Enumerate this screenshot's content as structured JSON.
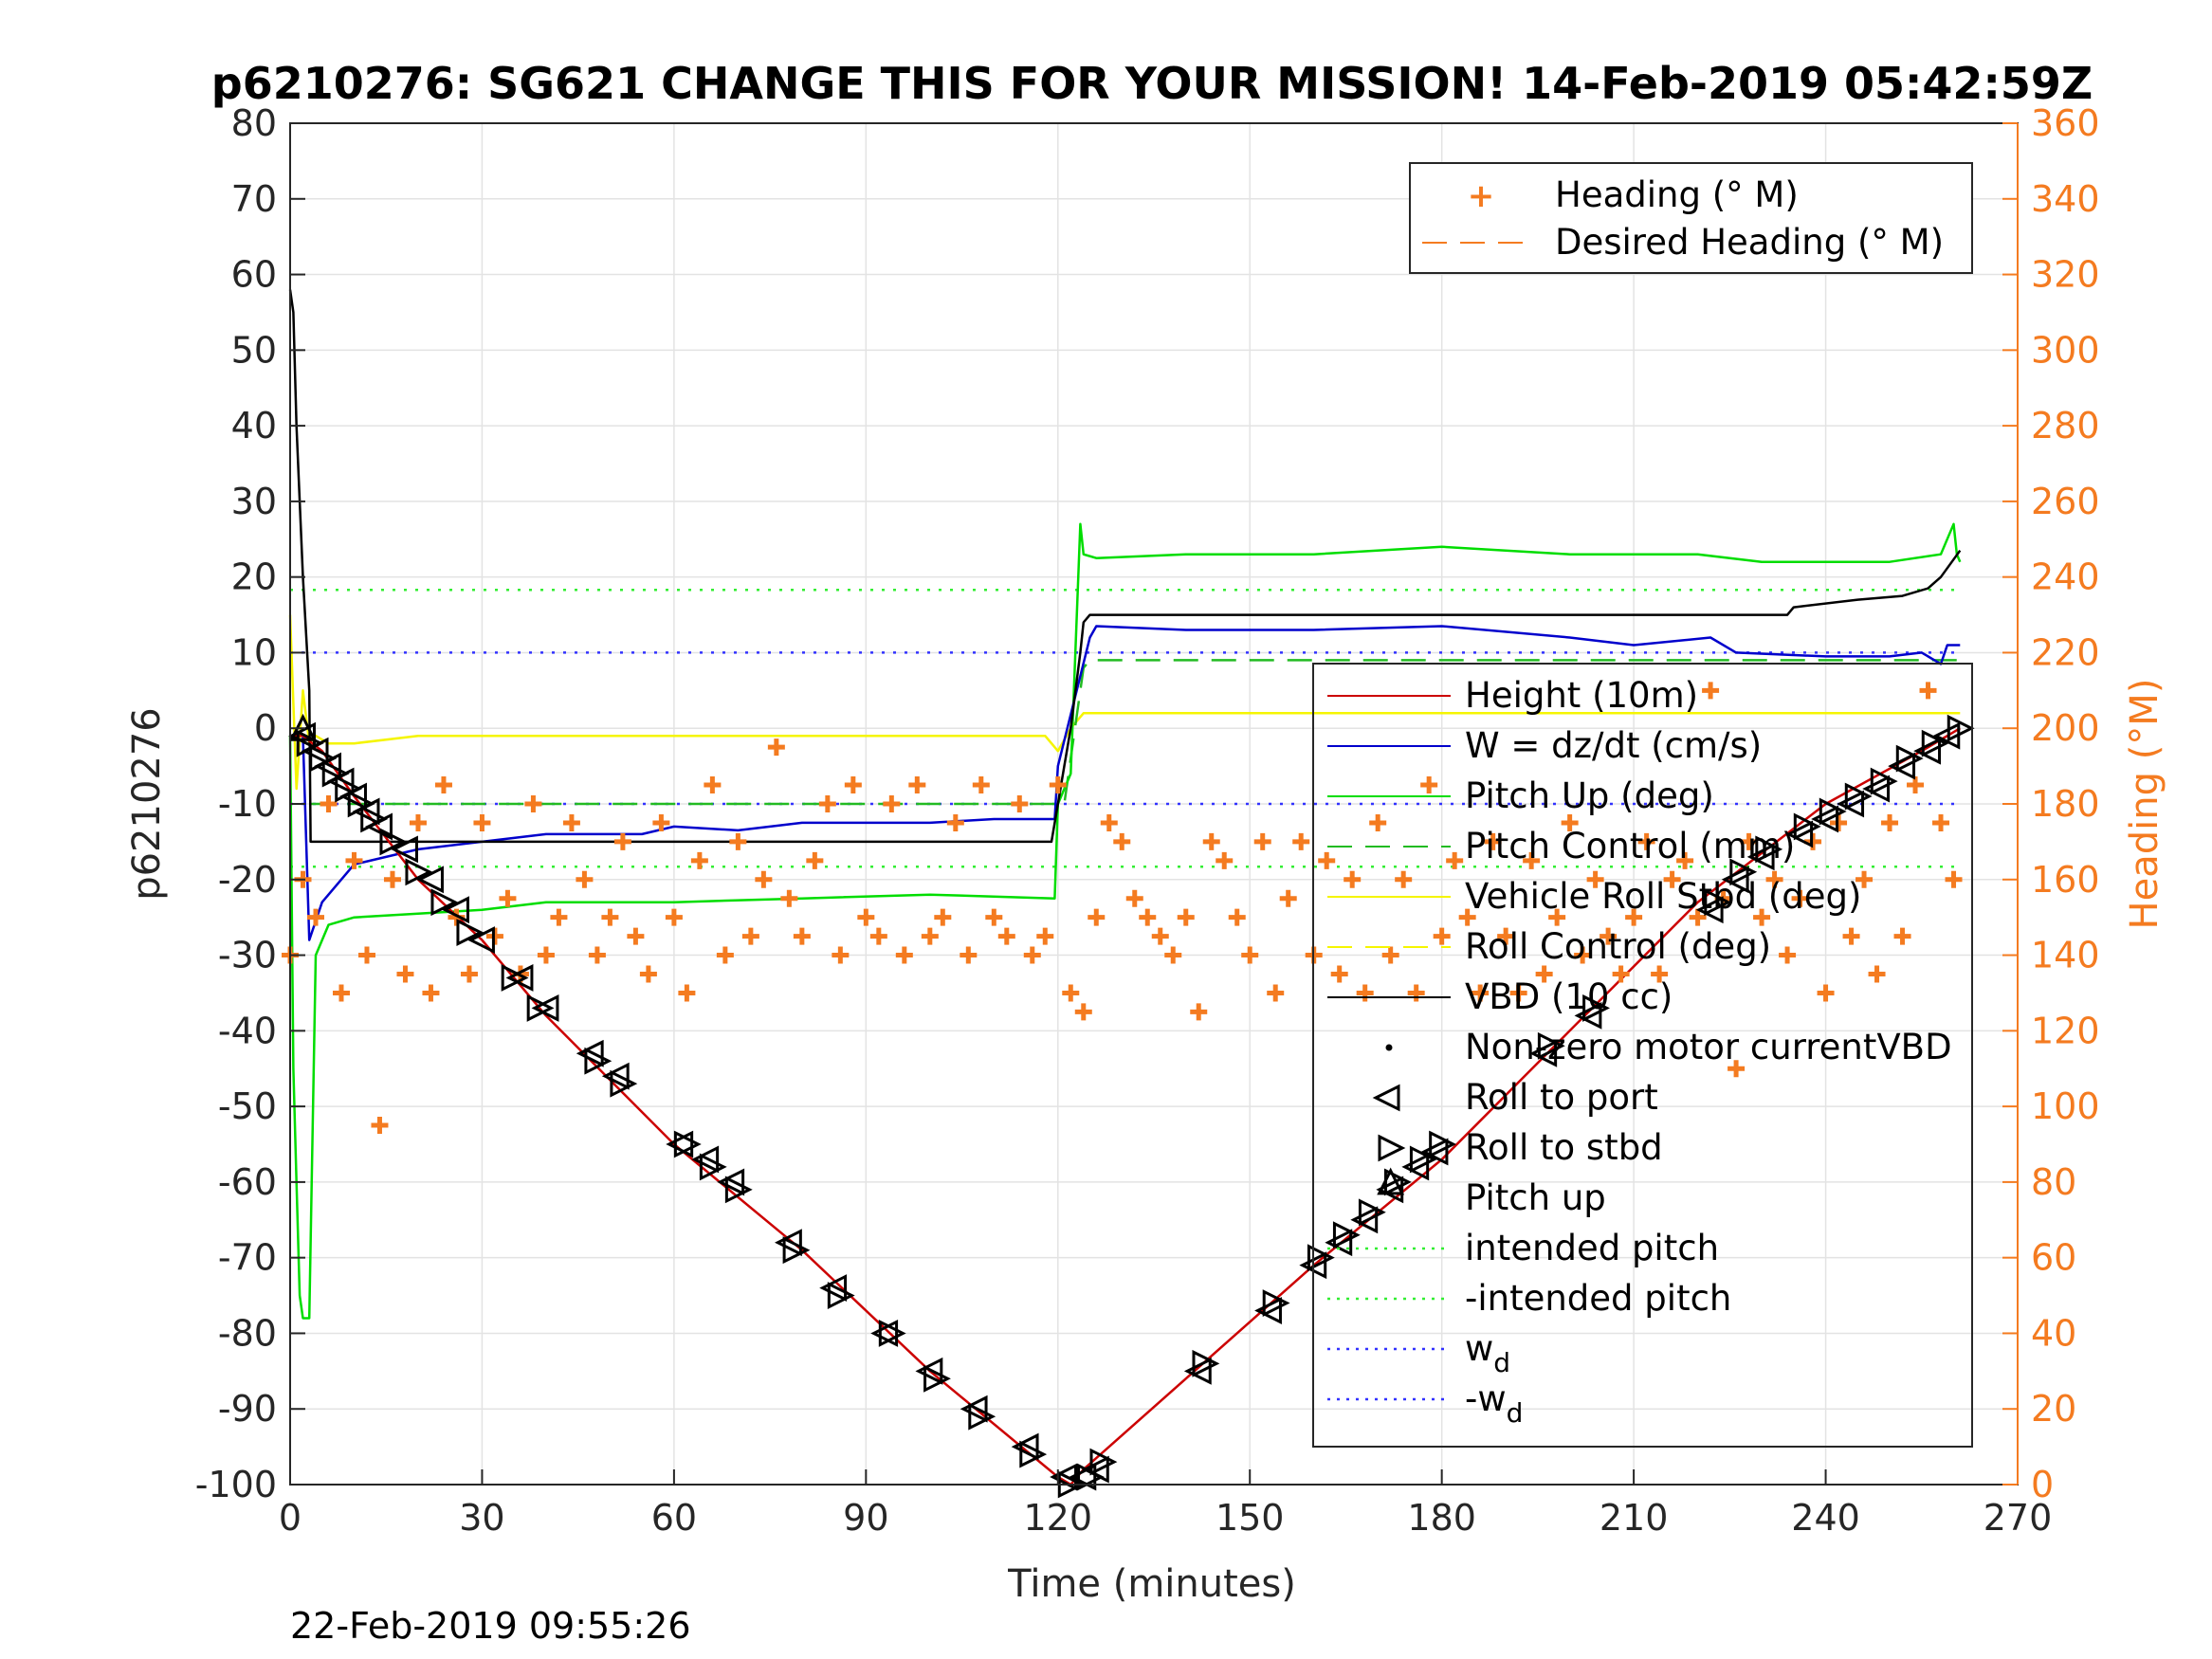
{
  "chart_data": {
    "type": "line",
    "title": "p6210276: SG621 CHANGE THIS FOR YOUR MISSION! 14-Feb-2019 05:42:59Z",
    "xlabel": "Time (minutes)",
    "ylabel": "p6210276",
    "y2label": "Heading (°M)",
    "footer": "22-Feb-2019 09:55:26",
    "xlim": [
      0,
      270
    ],
    "ylim": [
      -100,
      80
    ],
    "y2lim": [
      0,
      360
    ],
    "xticks": [
      "0",
      "30",
      "60",
      "90",
      "120",
      "150",
      "180",
      "210",
      "240",
      "270"
    ],
    "yticks": [
      "80",
      "70",
      "60",
      "50",
      "40",
      "30",
      "20",
      "10",
      "0",
      "-10",
      "-20",
      "-30",
      "-40",
      "-50",
      "-60",
      "-70",
      "-80",
      "-90",
      "-100"
    ],
    "y2ticks": [
      "360",
      "340",
      "320",
      "300",
      "280",
      "260",
      "240",
      "220",
      "200",
      "180",
      "160",
      "140",
      "120",
      "100",
      "80",
      "60",
      "40",
      "20",
      "0"
    ],
    "grid": true,
    "colors": {
      "height": "#cc0000",
      "w": "#0000cc",
      "pitch": "#00dd00",
      "pitch_control": "#22bb22",
      "roll": "#f5f500",
      "vbd": "#000000",
      "heading": "#f47b20",
      "intended_pitch": "#33ee33",
      "wd": "#3333ff"
    },
    "series": [
      {
        "name": "Height (10m)",
        "key": "height",
        "x": [
          0,
          2,
          5,
          10,
          20,
          30,
          40,
          60,
          80,
          100,
          120,
          122,
          124,
          140,
          160,
          180,
          200,
          220,
          240,
          255,
          261
        ],
        "y": [
          -1,
          -1,
          -3,
          -9,
          -20,
          -28,
          -38,
          -55,
          -69,
          -85,
          -99,
          -100,
          -98,
          -86,
          -71,
          -57,
          -40,
          -23,
          -10,
          -3,
          0
        ]
      },
      {
        "name": "W = dz/dt (cm/s)",
        "key": "w",
        "x": [
          0,
          2,
          3,
          5,
          10,
          20,
          30,
          40,
          55,
          60,
          70,
          80,
          100,
          110,
          119.5,
          120,
          125,
          126,
          140,
          160,
          180,
          200,
          210,
          222,
          226,
          240,
          250,
          255,
          258,
          259,
          261
        ],
        "y": [
          -1,
          -1,
          -28,
          -23,
          -18,
          -16,
          -15,
          -14,
          -14,
          -13,
          -13.5,
          -12.5,
          -12.5,
          -12,
          -12,
          -5,
          12,
          13.5,
          13,
          13,
          13.5,
          12,
          11,
          12,
          10,
          9.5,
          9.5,
          10,
          8.5,
          11,
          11
        ]
      },
      {
        "name": "Pitch Up (deg)",
        "key": "pitch",
        "x": [
          0,
          0.5,
          1,
          1.5,
          2,
          3,
          4,
          6,
          10,
          20,
          30,
          40,
          60,
          80,
          100,
          119.5,
          120,
          122,
          123.5,
          124,
          126,
          140,
          160,
          180,
          200,
          220,
          230,
          250,
          258,
          260,
          260.5,
          261
        ],
        "y": [
          -1,
          -45,
          -60,
          -75,
          -78,
          -78,
          -30,
          -26,
          -25,
          -24.5,
          -24,
          -23,
          -23,
          -22.5,
          -22,
          -22.5,
          -10,
          -6,
          27,
          23,
          22.5,
          23,
          23,
          24,
          23,
          23,
          22,
          22,
          23,
          27,
          23,
          22
        ]
      },
      {
        "name": "Pitch Control (mm)",
        "key": "pitch_control",
        "x": [
          3,
          120,
          121,
          124,
          125,
          261
        ],
        "y": [
          -10,
          -10,
          -10,
          8,
          9,
          9
        ]
      },
      {
        "name": "Vehicle Roll Stbd (deg)",
        "key": "roll",
        "x": [
          0,
          1,
          2,
          3,
          4,
          6,
          10,
          20,
          30,
          40,
          60,
          80,
          100,
          118,
          120,
          122,
          124,
          126,
          140,
          160,
          180,
          200,
          220,
          240,
          250,
          255,
          260,
          261
        ],
        "y": [
          15,
          -8,
          5,
          -2,
          -1,
          -2,
          -2,
          -1,
          -1,
          -1,
          -1,
          -1,
          -1,
          -1,
          -3,
          0,
          2,
          2,
          2,
          2,
          2,
          2,
          2,
          2,
          2,
          2,
          2,
          2
        ]
      },
      {
        "name": "Roll Control (deg)",
        "key": "roll_control",
        "x": [],
        "y": []
      },
      {
        "name": "VBD (10 cc)",
        "key": "vbd",
        "x": [
          0,
          0.5,
          1,
          2,
          3,
          3.2,
          10,
          30,
          60,
          90,
          119,
          120,
          121,
          122,
          123.5,
          124,
          125,
          160,
          200,
          220,
          234,
          235,
          245,
          252,
          256,
          258,
          261
        ],
        "y": [
          58,
          55,
          40,
          20,
          5,
          -15,
          -15,
          -15,
          -15,
          -15,
          -15,
          -10,
          -5,
          0,
          10,
          14,
          15,
          15,
          15,
          15,
          15,
          16,
          17,
          17.5,
          18.5,
          20,
          23.5
        ]
      },
      {
        "name": "Non-zero motor currentVBD",
        "key": "nonzero",
        "x": [],
        "y": []
      },
      {
        "name": "Roll to port",
        "key": "roll_port",
        "x": [
          2,
          4,
          6,
          8,
          10,
          12,
          14,
          18,
          22,
          26,
          30,
          36,
          40,
          47,
          51,
          61,
          65,
          69,
          78,
          85,
          93,
          100,
          107,
          115,
          121,
          124,
          126,
          142,
          153,
          160,
          164,
          168,
          172,
          176,
          179,
          196,
          203,
          222,
          226,
          230,
          236,
          240,
          244,
          248,
          252,
          256,
          259
        ],
        "y": [
          -1,
          -3,
          -5,
          -7,
          -9,
          -11,
          -13,
          -16,
          -20,
          -24,
          -28,
          -33,
          -37,
          -43,
          -46,
          -55,
          -57,
          -60,
          -68,
          -74,
          -80,
          -85,
          -90,
          -95,
          -99,
          -99,
          -98,
          -85,
          -77,
          -71,
          -68,
          -65,
          -61,
          -58,
          -56,
          -43,
          -38,
          -24,
          -20,
          -17,
          -14,
          -12,
          -10,
          -8,
          -5,
          -3,
          -1
        ]
      },
      {
        "name": "Roll to stbd",
        "key": "roll_stbd",
        "x": [
          3,
          5,
          7,
          9,
          11,
          13,
          16,
          20,
          24,
          28,
          35,
          39,
          48,
          52,
          62,
          66,
          70,
          79,
          86,
          94,
          101,
          108,
          116,
          122,
          125,
          127,
          143,
          154,
          161,
          165,
          169,
          173,
          177,
          180,
          197,
          204,
          223,
          227,
          231,
          237,
          241,
          245,
          249,
          253,
          257,
          261
        ],
        "y": [
          -2,
          -4,
          -6,
          -8,
          -10,
          -12,
          -15,
          -19,
          -23,
          -27,
          -33,
          -37,
          -44,
          -47,
          -55,
          -58,
          -61,
          -69,
          -75,
          -80,
          -86,
          -91,
          -96,
          -100,
          -99,
          -97,
          -84,
          -76,
          -70,
          -67,
          -64,
          -60,
          -57,
          -55,
          -42,
          -37,
          -23,
          -19,
          -16,
          -13,
          -11,
          -9,
          -7,
          -4,
          -2,
          0
        ]
      },
      {
        "name": "Pitch up",
        "key": "pitch_up",
        "x": [
          2,
          172
        ],
        "y": [
          0,
          -60
        ]
      },
      {
        "name": "intended pitch",
        "key": "intended_pitch",
        "x": [
          0,
          261
        ],
        "y": [
          18.3,
          18.3
        ]
      },
      {
        "name": "-intended pitch",
        "key": "neg_intended_pitch",
        "x": [
          0,
          261
        ],
        "y": [
          -18.3,
          -18.3
        ]
      },
      {
        "name": "w_d",
        "key": "wd",
        "x": [
          0,
          261
        ],
        "y": [
          10,
          10
        ]
      },
      {
        "name": "-w_d",
        "key": "neg_wd",
        "x": [
          0,
          261
        ],
        "y": [
          -10,
          -10
        ]
      },
      {
        "name": "Heading (° M)",
        "key": "heading",
        "axis": "right",
        "x": [
          0,
          2,
          4,
          6,
          8,
          10,
          12,
          14,
          16,
          18,
          20,
          22,
          24,
          26,
          28,
          30,
          32,
          34,
          36,
          38,
          40,
          42,
          44,
          46,
          48,
          50,
          52,
          54,
          56,
          58,
          60,
          62,
          64,
          66,
          68,
          70,
          72,
          74,
          76,
          78,
          80,
          82,
          84,
          86,
          88,
          90,
          92,
          94,
          96,
          98,
          100,
          102,
          104,
          106,
          108,
          110,
          112,
          114,
          116,
          118,
          120,
          122,
          124,
          126,
          128,
          130,
          132,
          134,
          136,
          138,
          140,
          142,
          144,
          146,
          148,
          150,
          152,
          154,
          156,
          158,
          160,
          162,
          164,
          166,
          168,
          170,
          172,
          174,
          176,
          178,
          180,
          182,
          184,
          186,
          188,
          190,
          192,
          194,
          196,
          198,
          200,
          202,
          204,
          206,
          208,
          210,
          212,
          214,
          216,
          218,
          220,
          222,
          224,
          226,
          228,
          230,
          232,
          234,
          236,
          238,
          240,
          242,
          244,
          246,
          248,
          250,
          252,
          254,
          256,
          258,
          260
        ],
        "y": [
          140,
          160,
          150,
          180,
          130,
          165,
          140,
          95,
          160,
          135,
          175,
          130,
          185,
          150,
          135,
          175,
          145,
          155,
          135,
          180,
          140,
          150,
          175,
          160,
          140,
          150,
          170,
          145,
          135,
          175,
          150,
          130,
          165,
          185,
          140,
          170,
          145,
          160,
          195,
          155,
          145,
          165,
          180,
          140,
          185,
          150,
          145,
          180,
          140,
          185,
          145,
          150,
          175,
          140,
          185,
          150,
          145,
          180,
          140,
          145,
          185,
          130,
          125,
          150,
          175,
          170,
          155,
          150,
          145,
          140,
          150,
          125,
          170,
          165,
          150,
          140,
          170,
          130,
          155,
          170,
          140,
          165,
          135,
          160,
          130,
          175,
          140,
          160,
          130,
          185,
          145,
          165,
          150,
          130,
          170,
          145,
          130,
          165,
          135,
          150,
          175,
          140,
          160,
          145,
          135,
          150,
          170,
          135,
          160,
          165,
          150,
          210,
          155,
          110,
          170,
          150,
          160,
          140,
          155,
          170,
          130,
          175,
          145,
          160,
          135,
          175,
          145,
          185,
          210,
          175,
          160
        ]
      },
      {
        "name": "Desired Heading (° M)",
        "key": "desired_heading",
        "axis": "right",
        "x": [],
        "y": []
      }
    ],
    "legend_main": [
      "Height (10m)",
      "W = dz/dt (cm/s)",
      "Pitch Up (deg)",
      "Pitch Control (mm)",
      "Vehicle Roll Stbd (deg)",
      "Roll Control (deg)",
      "VBD (10 cc)",
      "Non-zero motor currentVBD",
      "Roll to port",
      "Roll to stbd",
      "Pitch up",
      "intended pitch",
      "-intended pitch",
      "w",
      "-w"
    ],
    "legend_sub": "d",
    "legend_heading": [
      "Heading (° M)",
      "Desired Heading (° M)"
    ],
    "legend_main_position": "lower-right",
    "legend_heading_position": "top-right"
  }
}
